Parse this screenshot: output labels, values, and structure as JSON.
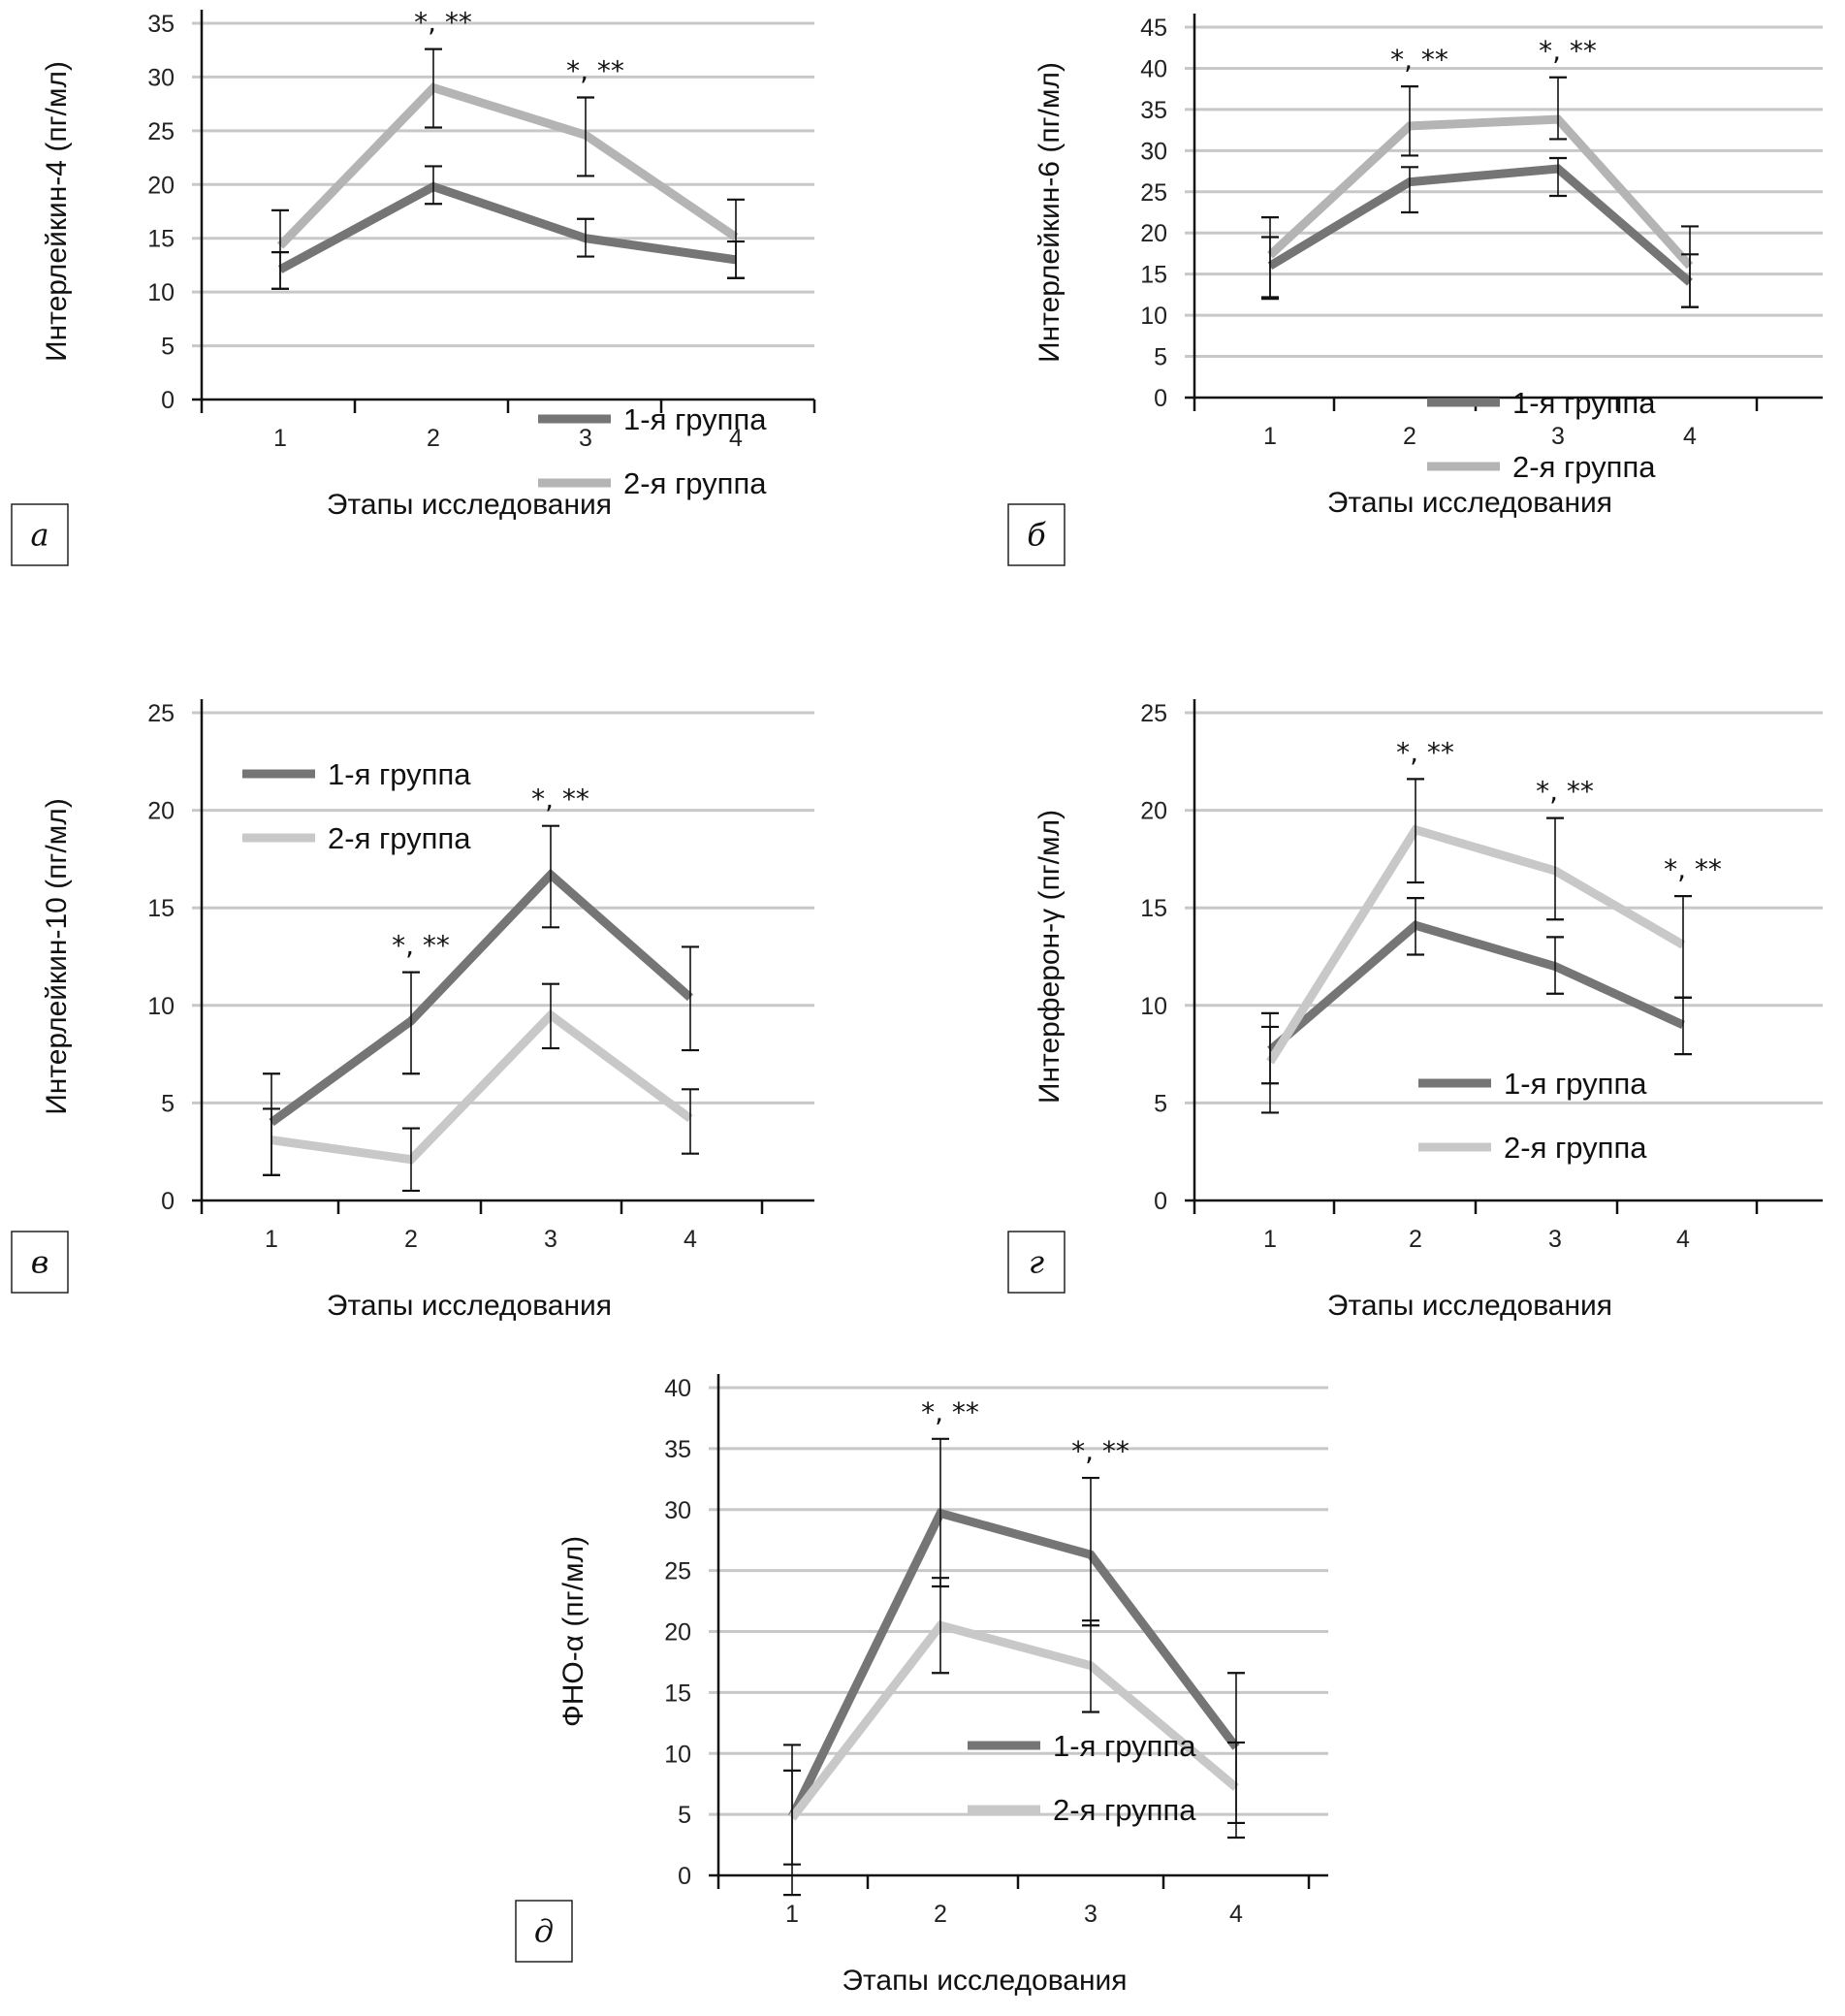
{
  "figure": {
    "legend_labels": [
      "1-я группа",
      "2-я группа"
    ],
    "colors": {
      "group1": "#757575",
      "group2": "#b4b4b4",
      "grid": "#c8c8c8",
      "axis": "#111111",
      "errorbar": "#111111"
    },
    "xlabel": "Этапы исследования"
  },
  "chart_data": [
    {
      "panel": "а",
      "type": "line",
      "title": "",
      "xlabel": "Этапы исследования",
      "ylabel": "Интерлейкин-4 (пг/мл)",
      "categories": [
        "1",
        "2",
        "3",
        "4"
      ],
      "ylim": [
        0,
        35
      ],
      "yticks": [
        0,
        5,
        10,
        15,
        20,
        25,
        30,
        35
      ],
      "grid": true,
      "legend_position": "bottom-right",
      "series": [
        {
          "name": "1-я группа",
          "values": [
            12.1,
            19.8,
            15.0,
            13.0
          ],
          "err_low": [
            10.3,
            18.2,
            13.3,
            11.3
          ],
          "err_high": [
            13.7,
            21.7,
            16.8,
            14.7
          ]
        },
        {
          "name": "2-я группа",
          "values": [
            14.3,
            29.0,
            24.6,
            15.1
          ],
          "err_low": [
            10.3,
            25.3,
            20.8,
            11.3
          ],
          "err_high": [
            17.6,
            32.6,
            28.1,
            18.6
          ]
        }
      ],
      "annotations": [
        {
          "category": "2",
          "text": "*, **"
        },
        {
          "category": "3",
          "text": "*, **"
        }
      ]
    },
    {
      "panel": "б",
      "type": "line",
      "title": "",
      "xlabel": "Этапы исследования",
      "ylabel": "Интерлейкин-6 (пг/мл)",
      "categories": [
        "1",
        "2",
        "3",
        "4"
      ],
      "ylim": [
        0,
        45
      ],
      "yticks": [
        0,
        5,
        10,
        15,
        20,
        25,
        30,
        35,
        40,
        45
      ],
      "grid": true,
      "legend_position": "bottom-right",
      "series": [
        {
          "name": "1-я группа",
          "values": [
            16.0,
            26.2,
            27.8,
            14.0
          ],
          "err_low": [
            12.0,
            22.5,
            24.5,
            11.0
          ],
          "err_high": [
            19.5,
            28.0,
            29.1,
            17.4
          ]
        },
        {
          "name": "2-я группа",
          "values": [
            17.3,
            33.0,
            33.8,
            16.0
          ],
          "err_low": [
            12.2,
            29.4,
            31.4,
            11.0
          ],
          "err_high": [
            21.9,
            37.8,
            38.9,
            20.8
          ]
        }
      ],
      "annotations": [
        {
          "category": "2",
          "text": "*, **"
        },
        {
          "category": "3",
          "text": "*, **"
        }
      ]
    },
    {
      "panel": "в",
      "type": "line",
      "title": "",
      "xlabel": "Этапы исследования",
      "ylabel": "Интерлейкин-10 (пг/мл)",
      "categories": [
        "1",
        "2",
        "3",
        "4"
      ],
      "ylim": [
        0,
        25
      ],
      "yticks": [
        0,
        5,
        10,
        15,
        20,
        25
      ],
      "grid": true,
      "legend_position": "top-left",
      "series": [
        {
          "name": "1-я группа",
          "values": [
            4.0,
            9.2,
            16.7,
            10.4
          ],
          "err_low": [
            1.3,
            6.5,
            14.0,
            7.7
          ],
          "err_high": [
            6.5,
            11.7,
            19.2,
            13.0
          ]
        },
        {
          "name": "2-я группа",
          "values": [
            3.1,
            2.1,
            9.5,
            4.2
          ],
          "err_low": [
            1.3,
            0.5,
            7.8,
            2.4
          ],
          "err_high": [
            4.7,
            3.7,
            11.1,
            5.7
          ]
        }
      ],
      "annotations": [
        {
          "category": "2",
          "text": "*, **"
        },
        {
          "category": "3",
          "text": "*, **"
        }
      ]
    },
    {
      "panel": "г",
      "type": "line",
      "title": "",
      "xlabel": "Этапы исследования",
      "ylabel": "Интерферон-γ (пг/мл)",
      "categories": [
        "1",
        "2",
        "3",
        "4"
      ],
      "ylim": [
        0,
        25
      ],
      "yticks": [
        0,
        5,
        10,
        15,
        20,
        25
      ],
      "grid": true,
      "legend_position": "bottom-right",
      "series": [
        {
          "name": "1-я группа",
          "values": [
            7.7,
            14.1,
            12.0,
            9.0
          ],
          "err_low": [
            6.0,
            12.6,
            10.6,
            7.5
          ],
          "err_high": [
            9.6,
            15.5,
            13.5,
            10.4
          ]
        },
        {
          "name": "2-я группа",
          "values": [
            7.1,
            19.0,
            16.9,
            13.1
          ],
          "err_low": [
            4.5,
            16.3,
            14.4,
            10.4
          ],
          "err_high": [
            8.9,
            21.6,
            19.6,
            15.6
          ]
        }
      ],
      "annotations": [
        {
          "category": "2",
          "text": "*, **"
        },
        {
          "category": "3",
          "text": "*, **"
        },
        {
          "category": "4",
          "text": "*, **"
        }
      ]
    },
    {
      "panel": "д",
      "type": "line",
      "title": "",
      "xlabel": "Этапы исследования",
      "ylabel": "ФНО-α (пг/мл)",
      "categories": [
        "1",
        "2",
        "3",
        "4"
      ],
      "ylim": [
        0,
        40
      ],
      "yticks": [
        0,
        5,
        10,
        15,
        20,
        25,
        30,
        35,
        40
      ],
      "grid": true,
      "legend_position": "bottom-right",
      "series": [
        {
          "name": "1-я группа",
          "values": [
            4.8,
            29.7,
            26.3,
            10.5
          ],
          "err_low": [
            0.9,
            23.7,
            20.5,
            4.3
          ],
          "err_high": [
            8.6,
            35.8,
            32.6,
            16.6
          ]
        },
        {
          "name": "2-я группа",
          "values": [
            4.7,
            20.5,
            17.2,
            7.2
          ],
          "err_low": [
            -1.6,
            16.6,
            13.4,
            3.1
          ],
          "err_high": [
            10.7,
            24.4,
            20.9,
            10.9
          ]
        }
      ],
      "annotations": [
        {
          "category": "2",
          "text": "*, **"
        },
        {
          "category": "3",
          "text": "*, **"
        }
      ]
    }
  ]
}
